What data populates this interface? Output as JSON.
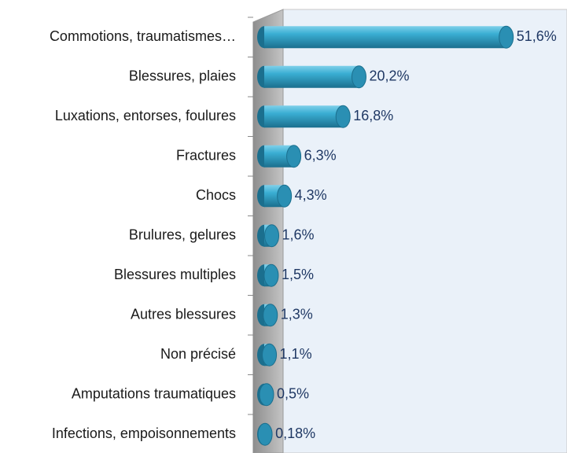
{
  "chart_data": {
    "type": "bar",
    "orientation": "horizontal",
    "categories": [
      "Commotions, traumatismes…",
      "Blessures, plaies",
      "Luxations, entorses, foulures",
      "Fractures",
      "Chocs",
      "Brulures, gelures",
      "Blessures multiples",
      "Autres blessures",
      "Non précisé",
      "Amputations traumatiques",
      "Infections, empoisonnements"
    ],
    "values": [
      51.6,
      20.2,
      16.8,
      6.3,
      4.3,
      1.6,
      1.5,
      1.3,
      1.1,
      0.5,
      0.18
    ],
    "value_labels": [
      "51,6%",
      "20,2%",
      "16,8%",
      "6,3%",
      "4,3%",
      "1,6%",
      "1,5%",
      "1,3%",
      "1,1%",
      "0,5%",
      "0,18%"
    ],
    "color": "#3aaed3",
    "xlim": [
      0,
      55
    ]
  }
}
